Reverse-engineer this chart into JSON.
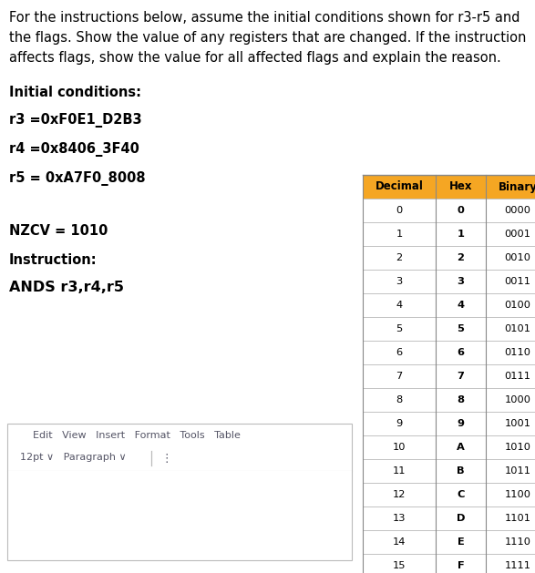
{
  "header_line1": "For the instructions below, assume the initial conditions shown for r3-r5 and",
  "header_line2": "the flags. Show the value of any registers that are changed. If the instruction",
  "header_line3": "affects flags, show the value for all affected flags and explain the reason.",
  "initial_label": "Initial conditions:",
  "r3": "r3 =0xF0E1_D2B3",
  "r4": "r4 =0x8406_3F40",
  "r5": "r5 = 0xA7F0_8008",
  "nzcv": "NZCV = 1010",
  "instruction_label": "Instruction:",
  "instruction": "ANDS r3,r4,r5",
  "editor_menu": "Edit   View   Insert   Format   Tools   Table",
  "font_bar_left": "12pt ∨   Paragraph ∨",
  "font_bar_dots": "⋮",
  "table_headers": [
    "Decimal",
    "Hex",
    "Binary"
  ],
  "table_data": [
    [
      "0",
      "0",
      "0000"
    ],
    [
      "1",
      "1",
      "0001"
    ],
    [
      "2",
      "2",
      "0010"
    ],
    [
      "3",
      "3",
      "0011"
    ],
    [
      "4",
      "4",
      "0100"
    ],
    [
      "5",
      "5",
      "0101"
    ],
    [
      "6",
      "6",
      "0110"
    ],
    [
      "7",
      "7",
      "0111"
    ],
    [
      "8",
      "8",
      "1000"
    ],
    [
      "9",
      "9",
      "1001"
    ],
    [
      "10",
      "A",
      "1010"
    ],
    [
      "11",
      "B",
      "1011"
    ],
    [
      "12",
      "C",
      "1100"
    ],
    [
      "13",
      "D",
      "1101"
    ],
    [
      "14",
      "E",
      "1110"
    ],
    [
      "15",
      "F",
      "1111"
    ]
  ],
  "header_bg": "#F5A623",
  "table_border": "#AAAAAA",
  "bg_color": "#FFFFFF",
  "text_color": "#000000",
  "text_color_light": "#444444"
}
